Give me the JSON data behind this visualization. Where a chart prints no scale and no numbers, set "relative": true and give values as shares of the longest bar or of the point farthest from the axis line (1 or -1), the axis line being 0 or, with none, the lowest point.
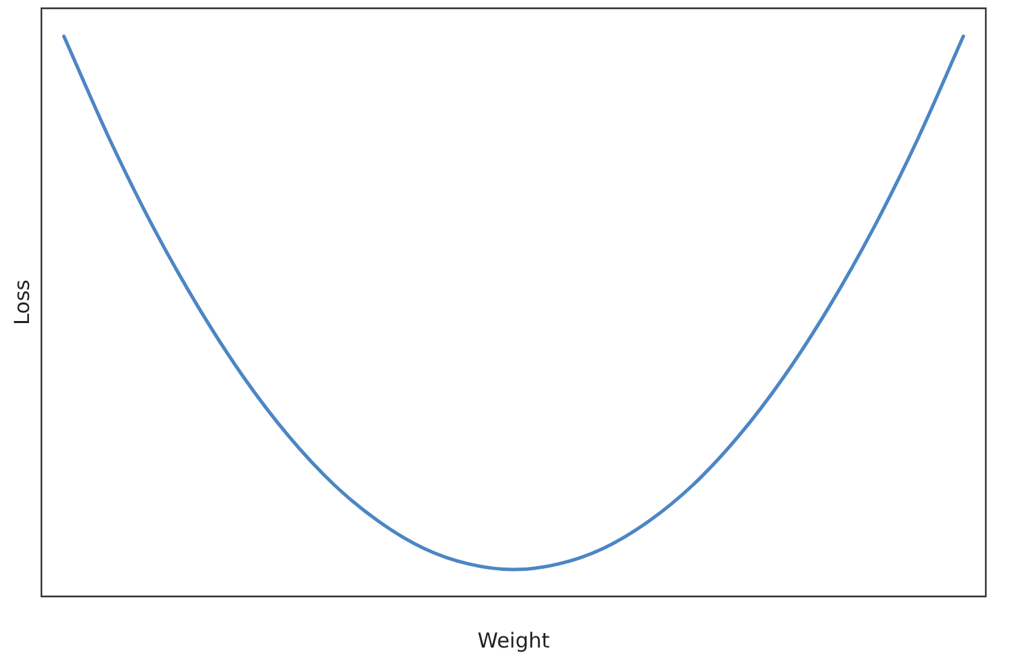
{
  "chart_data": {
    "type": "line",
    "xlabel": "Weight",
    "ylabel": "Loss",
    "relative": true,
    "grid": false,
    "legend": false,
    "marker": "none",
    "line_style": "solid",
    "categories": [
      null,
      null,
      null,
      null,
      null,
      null,
      null,
      null,
      null,
      null,
      null,
      null,
      null,
      null,
      null,
      null,
      null,
      null,
      null,
      null,
      null
    ],
    "series": [
      {
        "color": "#4c86c4",
        "values": [
          1,
          0.819,
          0.657,
          0.515,
          0.391,
          0.286,
          0.2,
          0.134,
          0.086,
          0.058,
          0.048,
          0.058,
          0.086,
          0.134,
          0.2,
          0.286,
          0.391,
          0.515,
          0.657,
          0.819,
          1
        ]
      }
    ]
  }
}
